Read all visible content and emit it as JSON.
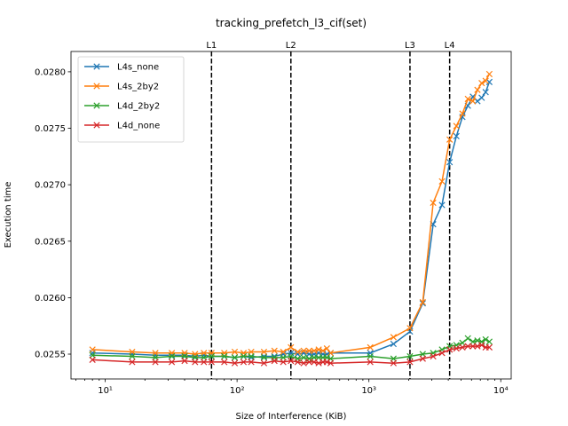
{
  "chart_data": {
    "type": "line",
    "title": "tracking_prefetch_l3_cif(set)",
    "xlabel": "Size of Interference (KiB)",
    "ylabel": "Execution time",
    "xscale": "log",
    "xlim": [
      5.5,
      12000
    ],
    "ylim": [
      0.02528,
      0.02818
    ],
    "yticks": [
      0.0255,
      0.026,
      0.0265,
      0.027,
      0.0275,
      0.028
    ],
    "ytick_labels": [
      "0.0255",
      "0.0260",
      "0.0265",
      "0.0270",
      "0.0275",
      "0.0280"
    ],
    "xticks": [
      10,
      100,
      1000,
      10000
    ],
    "xtick_labels": [
      "10¹",
      "10²",
      "10³",
      "10⁴"
    ],
    "grid": false,
    "legend": "top-left",
    "vlines": [
      {
        "label": "L1",
        "x": 64
      },
      {
        "label": "L2",
        "x": 256
      },
      {
        "label": "L3",
        "x": 2048
      },
      {
        "label": "L4",
        "x": 4096
      }
    ],
    "series": [
      {
        "name": "L4s_none",
        "color": "#1f77b4",
        "x": [
          8,
          16,
          24,
          32,
          40,
          48,
          56,
          64,
          80,
          96,
          112,
          128,
          160,
          192,
          224,
          256,
          288,
          320,
          352,
          384,
          416,
          448,
          480,
          512,
          1024,
          1536,
          2048,
          2560,
          3072,
          3584,
          4096,
          4608,
          5120,
          5632,
          6144,
          6656,
          7168,
          7680,
          8192
        ],
        "y": [
          0.02551,
          0.0255,
          0.02549,
          0.02549,
          0.02549,
          0.02548,
          0.02549,
          0.02548,
          0.02548,
          0.02547,
          0.02548,
          0.02547,
          0.02548,
          0.02548,
          0.0255,
          0.02551,
          0.0255,
          0.02551,
          0.0255,
          0.0255,
          0.02551,
          0.0255,
          0.0255,
          0.02551,
          0.02551,
          0.02559,
          0.0257,
          0.02595,
          0.02665,
          0.02682,
          0.0272,
          0.02743,
          0.0276,
          0.0277,
          0.02778,
          0.02774,
          0.02777,
          0.02782,
          0.02791
        ]
      },
      {
        "name": "L4s_2by2",
        "color": "#ff7f0e",
        "x": [
          8,
          16,
          24,
          32,
          40,
          48,
          56,
          64,
          80,
          96,
          112,
          128,
          160,
          192,
          224,
          256,
          288,
          320,
          352,
          384,
          416,
          448,
          480,
          512,
          1024,
          1536,
          2048,
          2560,
          3072,
          3584,
          4096,
          4608,
          5120,
          5632,
          6144,
          6656,
          7168,
          7680,
          8192
        ],
        "y": [
          0.02554,
          0.02552,
          0.02551,
          0.02551,
          0.02551,
          0.0255,
          0.02551,
          0.02551,
          0.02551,
          0.02552,
          0.02551,
          0.02552,
          0.02552,
          0.02553,
          0.02552,
          0.02556,
          0.02552,
          0.02553,
          0.02553,
          0.02553,
          0.02554,
          0.02553,
          0.02555,
          0.02551,
          0.02556,
          0.02565,
          0.02573,
          0.02596,
          0.02684,
          0.02703,
          0.0274,
          0.02752,
          0.02763,
          0.02776,
          0.02774,
          0.02784,
          0.0279,
          0.02792,
          0.02798
        ]
      },
      {
        "name": "L4d_2by2",
        "color": "#2ca02c",
        "x": [
          8,
          16,
          24,
          32,
          40,
          48,
          56,
          64,
          80,
          96,
          112,
          128,
          160,
          192,
          224,
          256,
          288,
          320,
          352,
          384,
          416,
          448,
          480,
          512,
          1024,
          1536,
          2048,
          2560,
          3072,
          3584,
          4096,
          4608,
          5120,
          5632,
          6144,
          6656,
          7168,
          7680,
          8192
        ],
        "y": [
          0.02549,
          0.02548,
          0.02547,
          0.02548,
          0.02548,
          0.02547,
          0.02547,
          0.02548,
          0.02548,
          0.02547,
          0.02548,
          0.02548,
          0.02547,
          0.02547,
          0.02547,
          0.02548,
          0.02546,
          0.02547,
          0.02546,
          0.02547,
          0.02547,
          0.02547,
          0.02547,
          0.02546,
          0.02548,
          0.02546,
          0.02548,
          0.0255,
          0.02551,
          0.02554,
          0.02557,
          0.02558,
          0.0256,
          0.02564,
          0.02561,
          0.02562,
          0.02561,
          0.02563,
          0.02561
        ]
      },
      {
        "name": "L4d_none",
        "color": "#d62728",
        "x": [
          8,
          16,
          24,
          32,
          40,
          48,
          56,
          64,
          80,
          96,
          112,
          128,
          160,
          192,
          224,
          256,
          288,
          320,
          352,
          384,
          416,
          448,
          480,
          512,
          1024,
          1536,
          2048,
          2560,
          3072,
          3584,
          4096,
          4608,
          5120,
          5632,
          6144,
          6656,
          7168,
          7680,
          8192
        ],
        "y": [
          0.02545,
          0.02543,
          0.02543,
          0.02543,
          0.02544,
          0.02543,
          0.02543,
          0.02543,
          0.02543,
          0.02542,
          0.02543,
          0.02543,
          0.02542,
          0.02544,
          0.02543,
          0.02544,
          0.02543,
          0.02542,
          0.02543,
          0.02543,
          0.02542,
          0.02543,
          0.02543,
          0.02542,
          0.02543,
          0.02542,
          0.02543,
          0.02546,
          0.02548,
          0.02551,
          0.02554,
          0.02555,
          0.02556,
          0.02557,
          0.02557,
          0.02557,
          0.02558,
          0.02556,
          0.02556
        ]
      }
    ]
  }
}
